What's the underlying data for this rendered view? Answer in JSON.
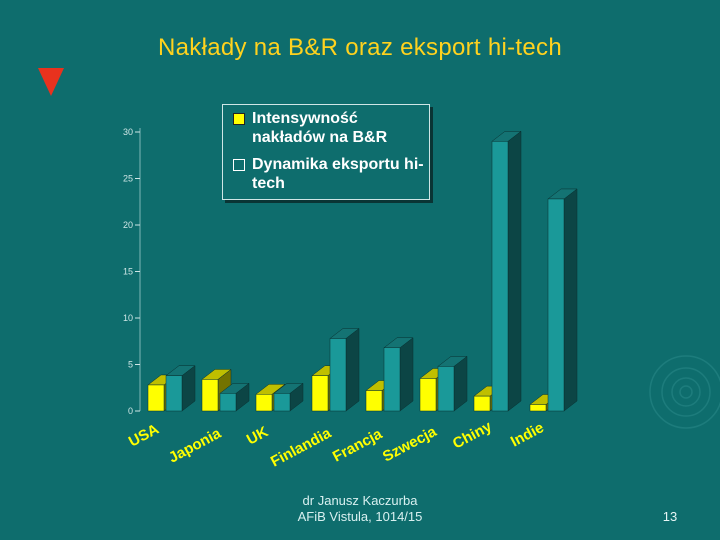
{
  "title": "Nakłady na B&R oraz eksport hi-tech",
  "footer": {
    "author": "dr Janusz Kaczurba",
    "institution": "AFiB Vistula, 1014/15",
    "page_number": "13"
  },
  "colors": {
    "background": "#0e6d6d",
    "title": "#ffd21e",
    "marker": "#e8321e",
    "series1": "#ffff00",
    "series2": "#1a9999"
  },
  "chart_data": {
    "type": "bar",
    "categories": [
      "USA",
      "Japonia",
      "UK",
      "Finlandia",
      "Francja",
      "Szwecja",
      "Chiny",
      "Indie"
    ],
    "series": [
      {
        "name": "Intensywność nakładów na B&R",
        "values": [
          2.8,
          3.4,
          1.8,
          3.8,
          2.2,
          3.5,
          1.6,
          0.7
        ]
      },
      {
        "name": "Dynamika eksportu hi-tech",
        "values": [
          3.8,
          1.9,
          1.9,
          7.8,
          6.8,
          4.8,
          29.0,
          22.8
        ]
      }
    ],
    "yticks": [
      "0",
      "5",
      "10",
      "15",
      "20",
      "25",
      "30"
    ],
    "ylim": [
      0,
      30
    ],
    "legend_position": "top-left",
    "bar_style": "3d"
  }
}
